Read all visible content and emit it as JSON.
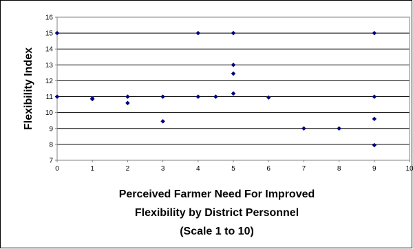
{
  "chart_data": {
    "type": "scatter",
    "title": "",
    "ylabel": "Flexibility Index",
    "xlabel_lines": [
      "Perceived Farmer Need For Improved",
      "Flexibility by District Personnel",
      "(Scale 1 to 10)"
    ],
    "xlim": [
      0,
      10
    ],
    "ylim": [
      7,
      16
    ],
    "x_ticks": [
      0,
      1,
      2,
      3,
      4,
      5,
      6,
      7,
      8,
      9,
      10
    ],
    "y_ticks": [
      7,
      8,
      9,
      10,
      11,
      12,
      13,
      14,
      15,
      16
    ],
    "grid": "horizontal",
    "legend": "none",
    "marker_color": "#000080",
    "points": [
      {
        "x": 0,
        "y": 15
      },
      {
        "x": 0,
        "y": 11
      },
      {
        "x": 1,
        "y": 10.9
      },
      {
        "x": 1,
        "y": 10.85
      },
      {
        "x": 2,
        "y": 11
      },
      {
        "x": 2,
        "y": 10.6
      },
      {
        "x": 3,
        "y": 11
      },
      {
        "x": 3,
        "y": 9.45
      },
      {
        "x": 4,
        "y": 15
      },
      {
        "x": 4,
        "y": 11
      },
      {
        "x": 4.5,
        "y": 11
      },
      {
        "x": 5,
        "y": 15
      },
      {
        "x": 5,
        "y": 13
      },
      {
        "x": 5,
        "y": 12.45
      },
      {
        "x": 5,
        "y": 11.2
      },
      {
        "x": 6,
        "y": 10.95
      },
      {
        "x": 7,
        "y": 9
      },
      {
        "x": 8,
        "y": 9
      },
      {
        "x": 9,
        "y": 15
      },
      {
        "x": 9,
        "y": 11
      },
      {
        "x": 9,
        "y": 9.6
      },
      {
        "x": 9,
        "y": 7.95
      }
    ]
  }
}
